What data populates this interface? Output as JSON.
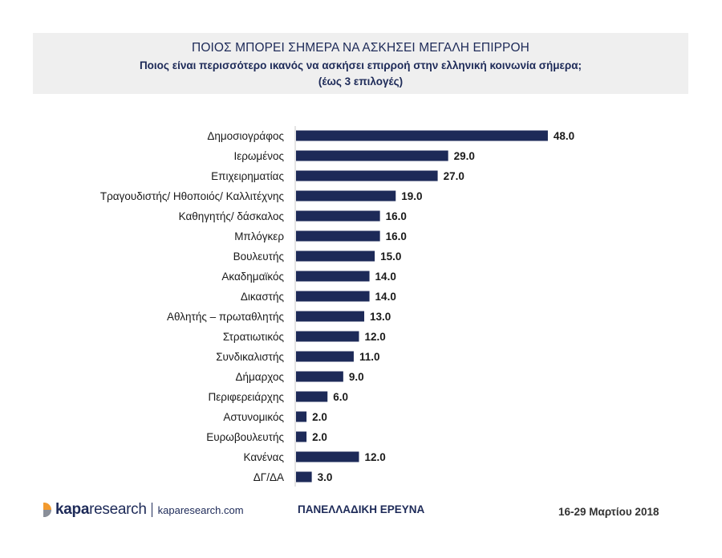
{
  "header": {
    "title": "ΠΟΙΟΣ ΜΠΟΡΕΙ  ΣΗΜΕΡΑ ΝΑ ΑΣΚΗΣΕΙ ΜΕΓΑΛΗ ΕΠΙΡΡΟΗ",
    "subtitle": "Ποιος είναι περισσότερο ικανός να ασκήσει επιρροή στην ελληνική κοινωνία σήμερα;",
    "note": "(έως 3 επιλογές)"
  },
  "chart_data": {
    "type": "bar",
    "orientation": "horizontal",
    "categories": [
      "Δημοσιογράφος",
      "Ιερωμένος",
      "Επιχειρηματίας",
      "Τραγουδιστής/ Ηθοποιός/ Καλλιτέχνης",
      "Καθηγητής/ δάσκαλος",
      "Μπλόγκερ",
      "Βουλευτής",
      "Ακαδημαϊκός",
      "Δικαστής",
      "Αθλητής – πρωταθλητής",
      "Στρατιωτικός",
      "Συνδικαλιστής",
      "Δήμαρχος",
      "Περιφερειάρχης",
      "Αστυνομικός",
      "Ευρωβουλευτής",
      "Κανένας",
      "ΔΓ/ΔΑ"
    ],
    "values": [
      48.0,
      29.0,
      27.0,
      19.0,
      16.0,
      16.0,
      15.0,
      14.0,
      14.0,
      13.0,
      12.0,
      11.0,
      9.0,
      6.0,
      2.0,
      2.0,
      12.0,
      3.0
    ],
    "value_labels": [
      "48.0",
      "29.0",
      "27.0",
      "19.0",
      "16.0",
      "16.0",
      "15.0",
      "14.0",
      "14.0",
      "13.0",
      "12.0",
      "11.0",
      "9.0",
      "6.0",
      "2.0",
      "2.0",
      "12.0",
      "3.0"
    ],
    "bar_color": "#1d2a58",
    "grid": false,
    "legend": "none"
  },
  "footer": {
    "logo_bold": "kapa",
    "logo_text": "research",
    "logo_url": "kaparesearch.com",
    "survey": "ΠΑΝΕΛΛΑΔΙΚΗ ΕΡΕΥΝΑ",
    "date": "16-29 Μαρτίου 2018"
  },
  "colors": {
    "navy": "#1d2a58",
    "header_bg": "#efefef",
    "logo_orange": "#f29a2e",
    "logo_gray": "#8a8f99"
  }
}
